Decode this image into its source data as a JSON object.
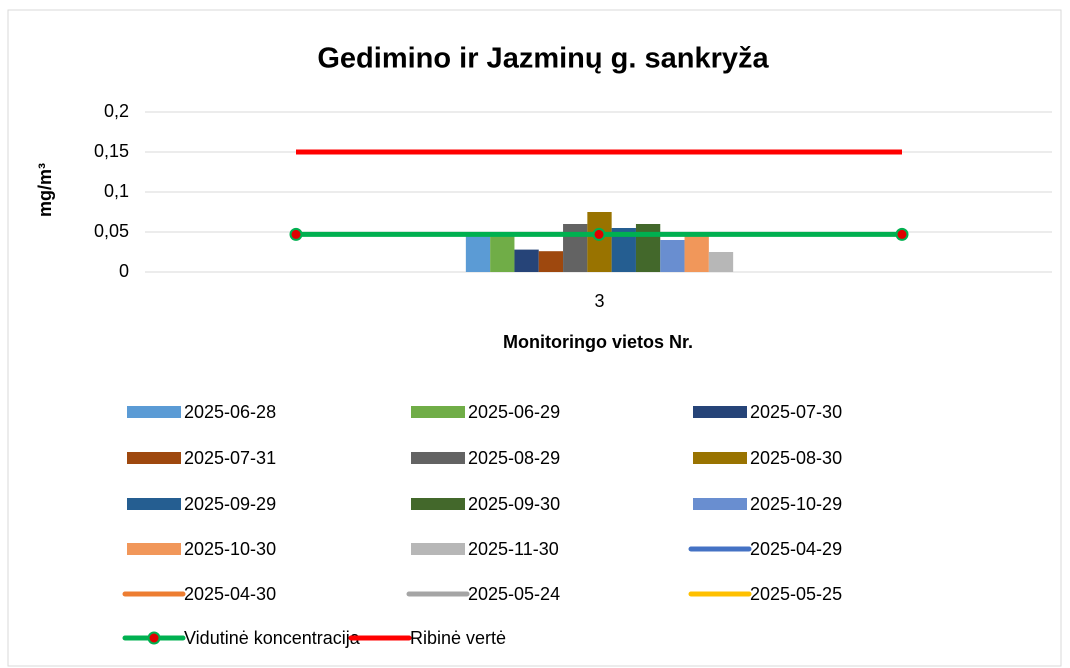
{
  "chart_data": {
    "type": "bar",
    "title": "Gedimino ir Jazminų g. sankryža",
    "y_label": "mg/m³",
    "x_label": "Monitoringo vietos Nr.",
    "categories": [
      "3"
    ],
    "ylim": [
      0,
      0.2
    ],
    "yticks": [
      0,
      {
        "value": 0.05,
        "label": "0,05"
      },
      {
        "value": 0.1,
        "label": "0,1"
      },
      {
        "value": 0.15,
        "label": "0,15"
      },
      {
        "value": 0.2,
        "label": "0,2"
      }
    ],
    "grid": true,
    "series": [
      {
        "name": "2025-06-28",
        "color": "#5b9bd5",
        "values": [
          0.045
        ]
      },
      {
        "name": "2025-06-29",
        "color": "#70ad47",
        "values": [
          0.05
        ]
      },
      {
        "name": "2025-07-30",
        "color": "#264478",
        "values": [
          0.028
        ]
      },
      {
        "name": "2025-07-31",
        "color": "#9e480e",
        "values": [
          0.026
        ]
      },
      {
        "name": "2025-08-29",
        "color": "#636363",
        "values": [
          0.06
        ]
      },
      {
        "name": "2025-08-30",
        "color": "#997300",
        "values": [
          0.075
        ]
      },
      {
        "name": "2025-09-29",
        "color": "#255e91",
        "values": [
          0.055
        ]
      },
      {
        "name": "2025-09-30",
        "color": "#43682b",
        "values": [
          0.06
        ]
      },
      {
        "name": "2025-10-29",
        "color": "#698ed0",
        "values": [
          0.04
        ]
      },
      {
        "name": "2025-10-30",
        "color": "#f1975a",
        "values": [
          0.045
        ]
      },
      {
        "name": "2025-11-30",
        "color": "#b7b7b7",
        "values": [
          0.025
        ]
      }
    ],
    "line_series": [
      {
        "name": "2025-04-29",
        "color": "#4472c4",
        "values": [
          null
        ]
      },
      {
        "name": "2025-04-30",
        "color": "#ed7d31",
        "values": [
          null
        ]
      },
      {
        "name": "2025-05-24",
        "color": "#a5a5a5",
        "values": [
          null
        ]
      },
      {
        "name": "2025-05-25",
        "color": "#ffc000",
        "values": [
          null
        ]
      },
      {
        "name": "Vidutinė koncentracija",
        "color": "#00b050",
        "marker": true,
        "values": [
          0.047,
          0.047,
          0.047
        ]
      },
      {
        "name": "Ribinė vertė",
        "color": "#ff0000",
        "values": [
          0.15,
          0.15,
          0.15
        ]
      }
    ]
  }
}
